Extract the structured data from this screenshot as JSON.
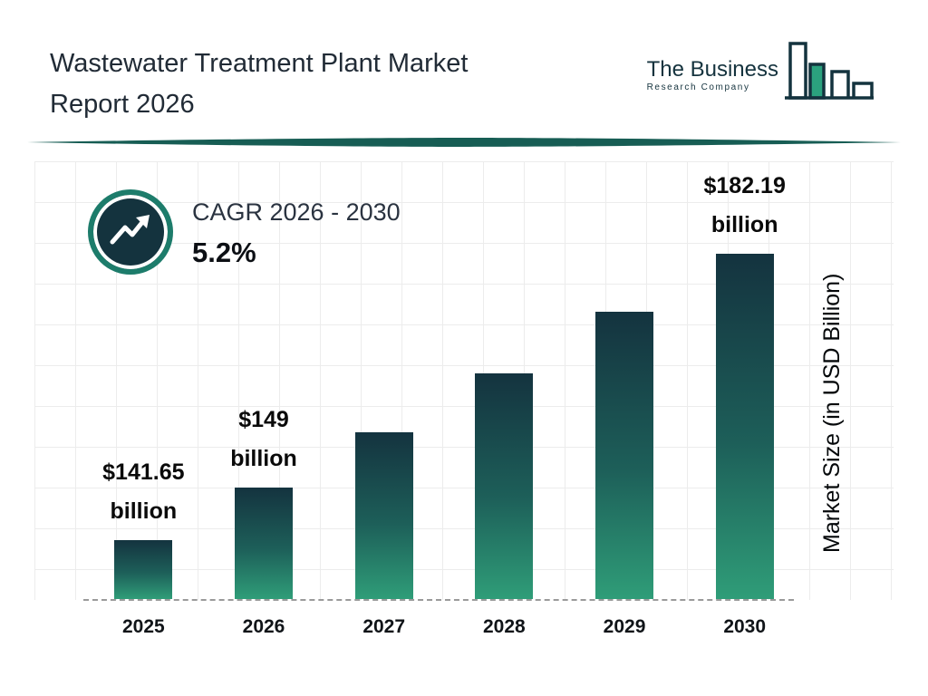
{
  "header": {
    "title_line1": "Wastewater Treatment Plant Market",
    "title_line2": "Report 2026"
  },
  "logo": {
    "line1": "The Business",
    "line2": "Research Company"
  },
  "cagr": {
    "label": "CAGR 2026 - 2030",
    "value": "5.2%"
  },
  "chart_data": {
    "type": "bar",
    "title": "Wastewater Treatment Plant Market Report 2026",
    "categories": [
      "2025",
      "2026",
      "2027",
      "2028",
      "2029",
      "2030"
    ],
    "values": [
      141.65,
      149,
      156.75,
      164.9,
      173.47,
      182.19
    ],
    "bar_labels": [
      {
        "line1": "$141.65",
        "line2": "billion"
      },
      {
        "line1": "$149",
        "line2": "billion"
      },
      null,
      null,
      null,
      {
        "line1": "$182.19",
        "line2": "billion"
      }
    ],
    "xlabel": "",
    "ylabel": "Market Size (in USD Billion)",
    "ylim": [
      133.5,
      183
    ],
    "grid": true,
    "legend": "none",
    "bar_gradient_top": "#14333f",
    "bar_gradient_bottom": "#2f9d78"
  },
  "colors": {
    "accent_teal": "#1d7c6b",
    "dark_navy": "#14333e",
    "divider_green": "#175d54",
    "grid_gray": "#ececec"
  }
}
